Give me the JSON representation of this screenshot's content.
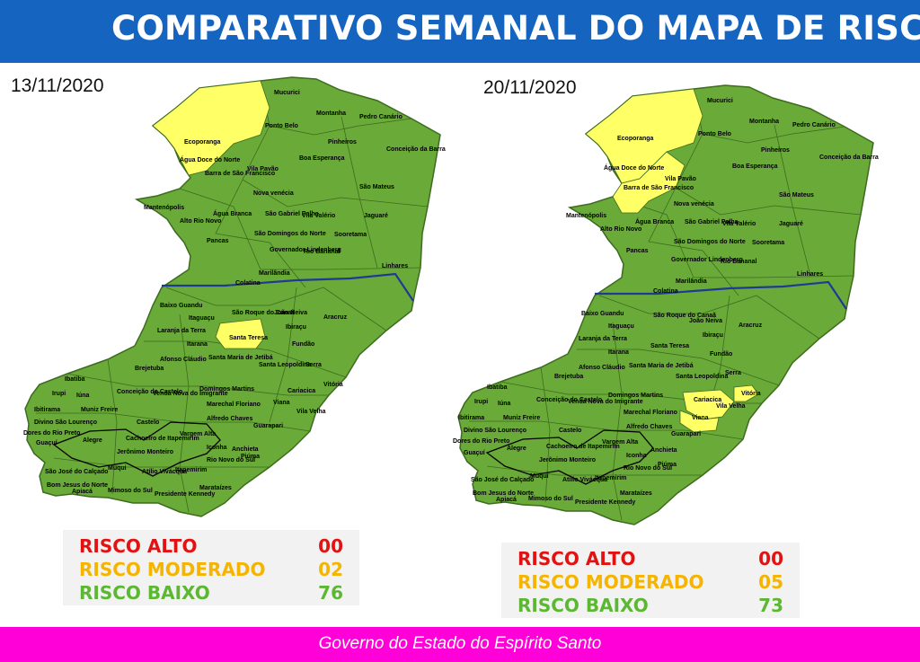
{
  "header": {
    "title": "COMPARATIVO SEMANAL DO MAPA DE RISCO"
  },
  "colors": {
    "header_bg": "#1565c0",
    "footer_bg": "#ff00d8",
    "low": "#6aaa38",
    "moderate": "#ffff66",
    "high": "#e31212",
    "river": "#1f3a93"
  },
  "maps": [
    {
      "date": "13/11/2020",
      "legend": [
        {
          "label": "RISCO ALTO",
          "value": "00",
          "level": "alto"
        },
        {
          "label": "RISCO MODERADO",
          "value": "02",
          "level": "moderado"
        },
        {
          "label": "RISCO BAIXO",
          "value": "76",
          "level": "baixo"
        }
      ],
      "moderate_municipalities": [
        "Ecoporanga",
        "Santa Teresa"
      ]
    },
    {
      "date": "20/11/2020",
      "legend": [
        {
          "label": "RISCO ALTO",
          "value": "00",
          "level": "alto"
        },
        {
          "label": "RISCO MODERADO",
          "value": "05",
          "level": "moderado"
        },
        {
          "label": "RISCO BAIXO",
          "value": "73",
          "level": "baixo"
        }
      ],
      "moderate_municipalities": [
        "Ecoporanga",
        "Barra de São Francisco",
        "Cariacica",
        "Vitória",
        "Viana"
      ]
    }
  ],
  "municipalities": {
    "mucurici": "Mucurici",
    "montanha": "Montanha",
    "pedro_canario": "Pedro Canário",
    "ecoporanga": "Ecoporanga",
    "ponto_belo": "Ponto Belo",
    "pinheiros": "Pinheiros",
    "conceicao_barra": "Conceição da Barra",
    "agua_doce": "Água Doce do Norte",
    "boa_esperanca": "Boa Esperança",
    "barra_sao_francisco": "Barra de São Francisco",
    "vila_pavao": "Vila Pavão",
    "sao_mateus": "São Mateus",
    "nova_venecia": "Nova venécia",
    "mantenopolis": "Mantenópolis",
    "agua_branca": "Água Branca",
    "sao_gabriel": "São Gabriel Palha",
    "vila_valerio": "Vila Valério",
    "jaguare": "Jaguaré",
    "alto_rio_novo": "Alto Rio Novo",
    "sao_domingos": "São Domingos do Norte",
    "sooretama": "Sooretama",
    "pancas": "Pancas",
    "governador_lindenberg": "Governador Lindenberg",
    "rio_bananal": "Rio Bananal",
    "marilandia": "Marilândia",
    "linhares": "Linhares",
    "colatina": "Colatina",
    "baixo_guandu": "Baixo Guandu",
    "itaguacu": "Itaguaçu",
    "sao_roque": "São Roque do Canaã",
    "joao_neiva": "João Neiva",
    "aracruz": "Aracruz",
    "ibiracu": "Ibiraçu",
    "laranja_terra": "Laranja da Terra",
    "itarana": "Itarana",
    "santa_teresa": "Santa Teresa",
    "fundao": "Fundão",
    "afonso_claudio": "Afonso Cláudio",
    "brejetuba": "Brejetuba",
    "santa_maria": "Santa Maria de Jetibá",
    "santa_leopoldina": "Santa Leopoldina",
    "serra": "Serra",
    "ibatiba": "Ibatiba",
    "domingos_martins": "Domingos Martins",
    "cariacica": "Cariacica",
    "vitoria": "Vitória",
    "irupi": "Irupi",
    "iuna": "Iúna",
    "conceicao_castelo": "Conceição do Castelo",
    "venda_nova": "Venda Nova do Imigrante",
    "marechal_floriano": "Marechal Floriano",
    "viana": "Viana",
    "vila_velha": "Vila Velha",
    "ibitirama": "Ibitirama",
    "muniz_freire": "Muniz Freire",
    "castelo": "Castelo",
    "alfredo_chaves": "Alfredo Chaves",
    "guarapari": "Guarapari",
    "divino_sao_lourenco": "Divino São Lourenço",
    "dores_rio_preto": "Dores do Rio Preto",
    "alegre": "Alegre",
    "cachoeiro": "Cachoeiro de Itapemirim",
    "vargem_alta": "Vargem Alta",
    "guacui": "Guaçuí",
    "jeronimo_monteiro": "Jerônimo Monteiro",
    "iconha": "Iconha",
    "anchieta": "Anchieta",
    "rio_novo_sul": "Rio Novo do Sul",
    "piuma": "Piúma",
    "muqui": "Muqui",
    "atilio_vivacqua": "Atílio Vivácqua",
    "itapemirim": "Itapemirim",
    "sao_jose_calcado": "São José do Calçado",
    "bom_jesus": "Bom Jesus do Norte",
    "apiaca": "Apiacá",
    "mimoso_sul": "Mimoso do Sul",
    "presidente_kennedy": "Presidente Kennedy",
    "marataizes": "Marataízes"
  },
  "footer": {
    "text": "Governo do Estado do Espírito Santo"
  }
}
